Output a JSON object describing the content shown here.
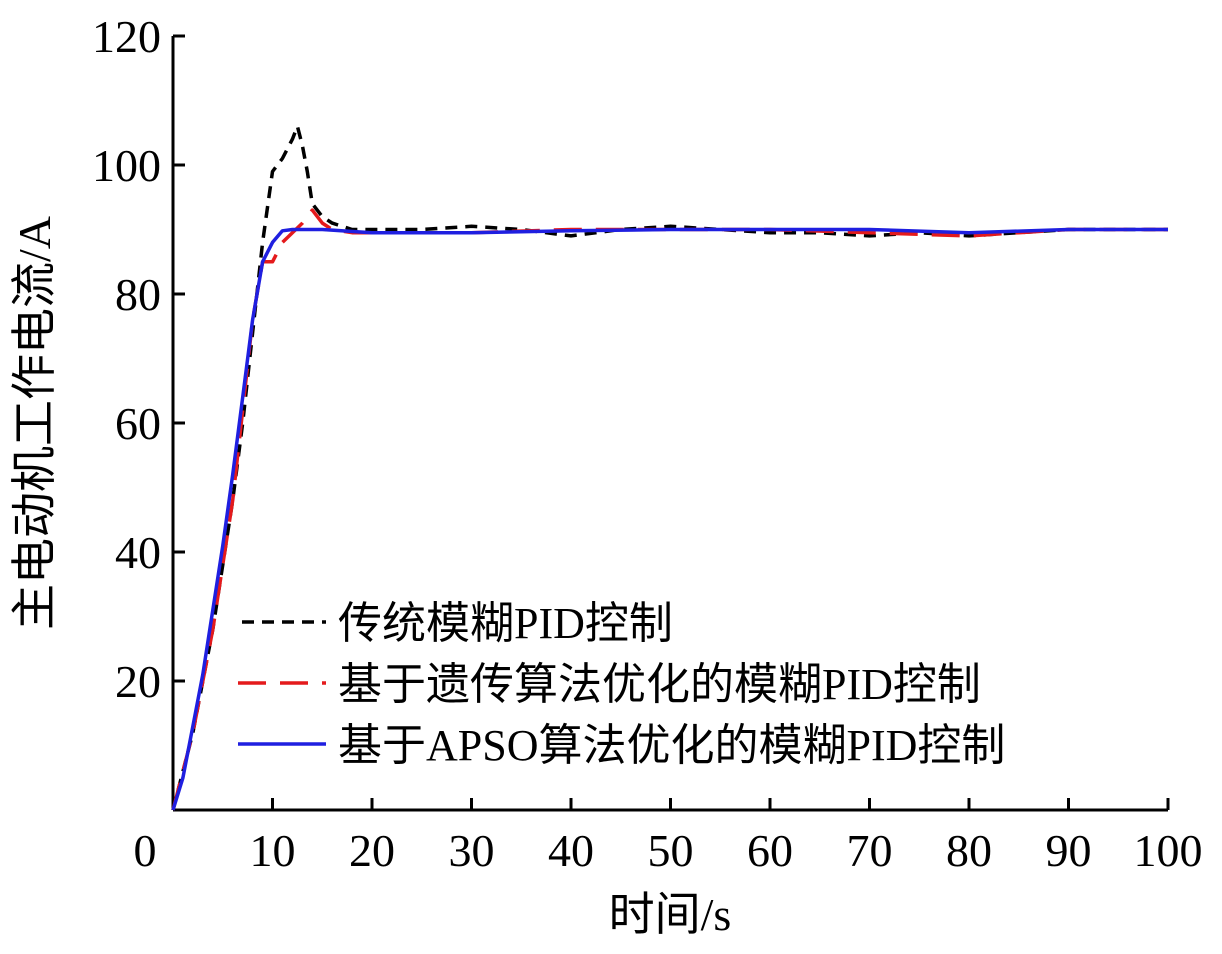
{
  "chart_data": {
    "type": "line",
    "title": "",
    "xlabel": "时间/s",
    "ylabel": "主电动机工作电流/A",
    "xlim": [
      0,
      100
    ],
    "ylim": [
      0,
      120
    ],
    "x_ticks": [
      0,
      10,
      20,
      30,
      40,
      50,
      60,
      70,
      80,
      90,
      100
    ],
    "y_ticks": [
      20,
      40,
      60,
      80,
      100,
      120
    ],
    "grid": false,
    "legend_position": "bottom-left",
    "series": [
      {
        "name": "传统模糊PID控制",
        "color": "#000000",
        "style": "dashed-short",
        "points": [
          [
            0,
            0
          ],
          [
            2,
            12
          ],
          [
            4,
            28
          ],
          [
            6,
            48
          ],
          [
            7,
            60
          ],
          [
            8,
            74
          ],
          [
            9,
            88
          ],
          [
            10,
            99
          ],
          [
            11,
            101
          ],
          [
            12,
            104
          ],
          [
            12.5,
            106
          ],
          [
            13,
            103
          ],
          [
            13.5,
            99
          ],
          [
            14,
            94
          ],
          [
            15,
            92
          ],
          [
            16,
            91
          ],
          [
            18,
            90
          ],
          [
            20,
            90
          ],
          [
            25,
            90
          ],
          [
            30,
            90.5
          ],
          [
            35,
            90
          ],
          [
            40,
            89
          ],
          [
            45,
            90
          ],
          [
            50,
            90.5
          ],
          [
            55,
            90
          ],
          [
            60,
            89.5
          ],
          [
            65,
            89.5
          ],
          [
            70,
            89
          ],
          [
            75,
            89.5
          ],
          [
            80,
            89
          ],
          [
            85,
            89.5
          ],
          [
            90,
            90
          ],
          [
            95,
            90
          ],
          [
            100,
            90
          ]
        ]
      },
      {
        "name": "基于遗传算法优化的模糊PID控制",
        "color": "#e41a1c",
        "style": "dashed-long",
        "points": [
          [
            0,
            0
          ],
          [
            2,
            12
          ],
          [
            4,
            28
          ],
          [
            6,
            48
          ],
          [
            7,
            62
          ],
          [
            8,
            76
          ],
          [
            9,
            85
          ],
          [
            10,
            85
          ],
          [
            11,
            88
          ],
          [
            12,
            89.5
          ],
          [
            13,
            91
          ],
          [
            14,
            93
          ],
          [
            15,
            91
          ],
          [
            16,
            90
          ],
          [
            18,
            89.5
          ],
          [
            20,
            89.5
          ],
          [
            30,
            89.5
          ],
          [
            40,
            90
          ],
          [
            50,
            90
          ],
          [
            60,
            90
          ],
          [
            70,
            89.5
          ],
          [
            80,
            89
          ],
          [
            85,
            89.5
          ],
          [
            90,
            90
          ],
          [
            100,
            90
          ]
        ]
      },
      {
        "name": "基于APSO算法优化的模糊PID控制",
        "color": "#1f1fe0",
        "style": "solid",
        "points": [
          [
            0,
            0
          ],
          [
            1,
            5
          ],
          [
            2,
            13
          ],
          [
            3,
            21
          ],
          [
            4,
            31
          ],
          [
            5,
            41
          ],
          [
            6,
            52
          ],
          [
            7,
            64
          ],
          [
            8,
            76
          ],
          [
            9,
            85
          ],
          [
            10,
            88
          ],
          [
            11,
            89.8
          ],
          [
            12,
            90
          ],
          [
            15,
            90
          ],
          [
            20,
            89.5
          ],
          [
            30,
            89.5
          ],
          [
            40,
            89.8
          ],
          [
            50,
            90
          ],
          [
            60,
            90
          ],
          [
            70,
            90
          ],
          [
            80,
            89.5
          ],
          [
            90,
            90
          ],
          [
            100,
            90
          ]
        ]
      }
    ]
  }
}
